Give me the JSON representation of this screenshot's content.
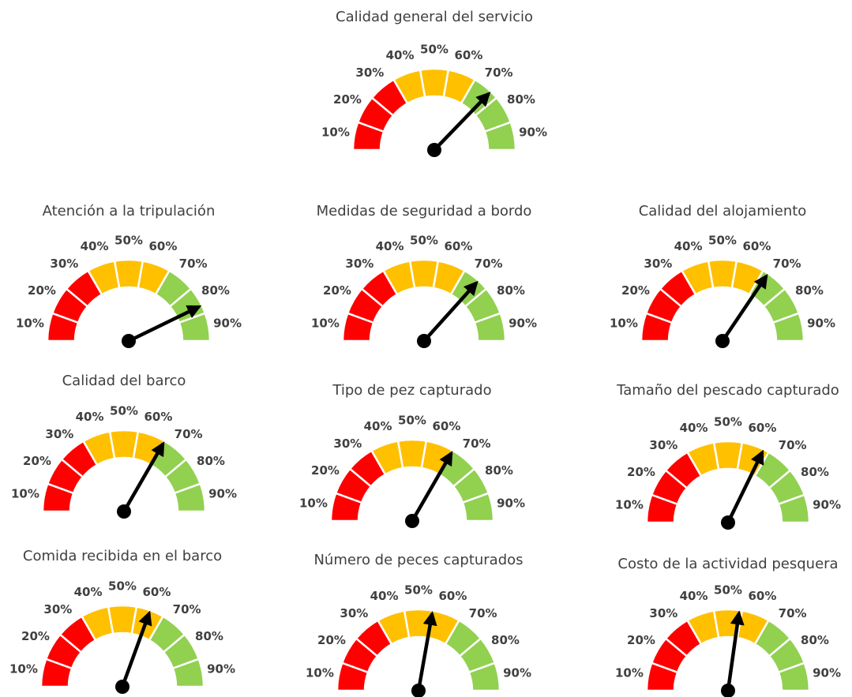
{
  "chart_data": [
    {
      "type": "gauge",
      "title": "Calidad general del servicio",
      "value": 72
    },
    {
      "type": "gauge",
      "title": "Atención a la tripulación",
      "value": 82
    },
    {
      "type": "gauge",
      "title": "Medidas de seguridad a bordo",
      "value": 71
    },
    {
      "type": "gauge",
      "title": "Calidad del alojamiento",
      "value": 67
    },
    {
      "type": "gauge",
      "title": "Calidad del barco",
      "value": 65
    },
    {
      "type": "gauge",
      "title": "Tipo de pez capturado",
      "value": 65
    },
    {
      "type": "gauge",
      "title": "Tamaño del pescado capturado",
      "value": 63
    },
    {
      "type": "gauge",
      "title": "Comida recibida en el barco",
      "value": 60
    },
    {
      "type": "gauge",
      "title": "Número de peces capturados",
      "value": 55
    },
    {
      "type": "gauge",
      "title": "Costo de la actividad pesquera",
      "value": 54
    }
  ],
  "ylim": [
    5,
    95
  ],
  "yticks": [
    {
      "value": 10,
      "label": "10%"
    },
    {
      "value": 20,
      "label": "20%"
    },
    {
      "value": 30,
      "label": "30%"
    },
    {
      "value": 40,
      "label": "40%"
    },
    {
      "value": 50,
      "label": "50%"
    },
    {
      "value": 60,
      "label": "60%"
    },
    {
      "value": 70,
      "label": "70%"
    },
    {
      "value": 80,
      "label": "80%"
    },
    {
      "value": 90,
      "label": "90%"
    }
  ],
  "colors": [
    "#ff0000",
    "#ff0000",
    "#ff0000",
    "#ffc000",
    "#ffc000",
    "#ffc000",
    "#92d050",
    "#92d050",
    "#92d050"
  ]
}
